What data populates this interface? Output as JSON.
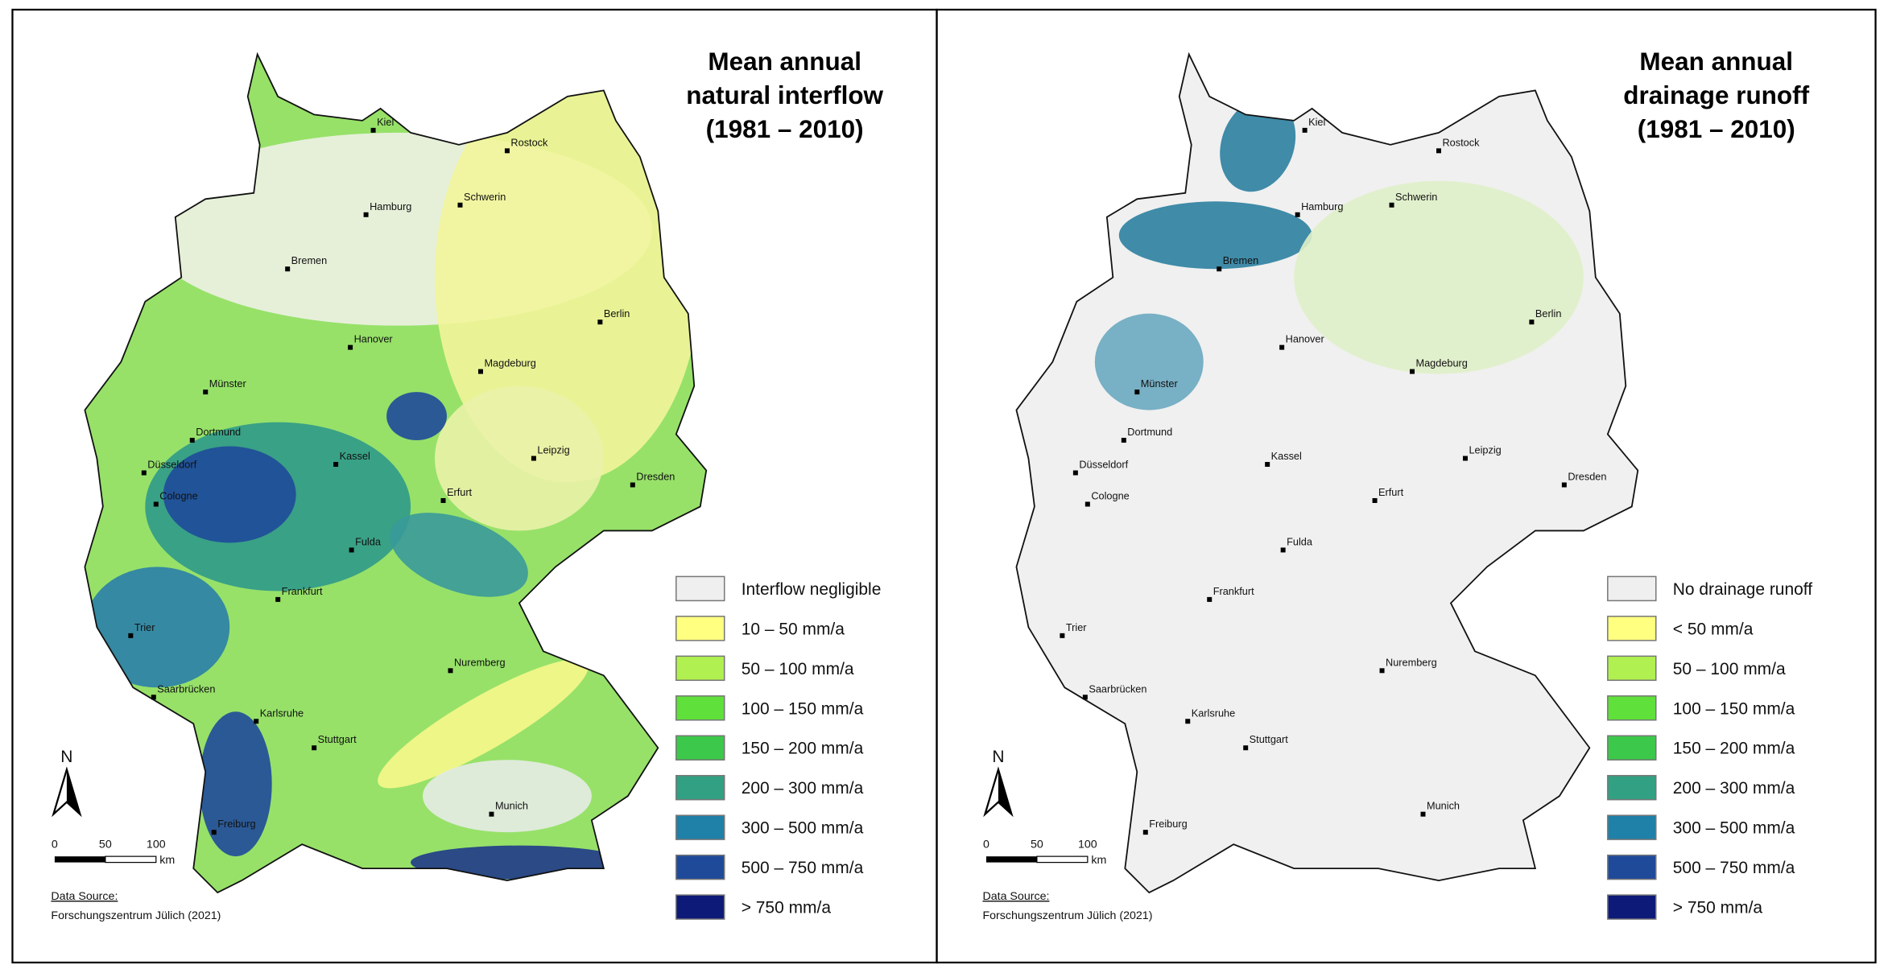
{
  "panels": [
    {
      "title": [
        "Mean annual",
        "natural interflow",
        "(1981 – 2010)"
      ],
      "cities": [
        "Kiel",
        "Rostock",
        "Hamburg",
        "Schwerin",
        "Bremen",
        "Berlin",
        "Hanover",
        "Magdeburg",
        "Münster",
        "Dortmund",
        "Düsseldorf",
        "Kassel",
        "Leipzig",
        "Cologne",
        "Erfurt",
        "Dresden",
        "Fulda",
        "Frankfurt",
        "Trier",
        "Nuremberg",
        "Saarbrücken",
        "Karlsruhe",
        "Stuttgart",
        "Munich",
        "Freiburg"
      ],
      "legend": [
        {
          "label": "Interflow negligible",
          "color": "#efefef"
        },
        {
          "label": "10 – 50 mm/a",
          "color": "#ffff80"
        },
        {
          "label": "50 – 100 mm/a",
          "color": "#b0f050"
        },
        {
          "label": "100 – 150 mm/a",
          "color": "#5fe03a"
        },
        {
          "label": "150 – 200 mm/a",
          "color": "#3cc84a"
        },
        {
          "label": "200 – 300 mm/a",
          "color": "#32a082"
        },
        {
          "label": "300 – 500 mm/a",
          "color": "#1f80a8"
        },
        {
          "label": "500 – 750 mm/a",
          "color": "#1f4a9a"
        },
        {
          "label": "> 750 mm/a",
          "color": "#0d1a78"
        }
      ],
      "north": "N",
      "scale": {
        "ticks": [
          "0",
          "50",
          "100"
        ],
        "unit": "km"
      },
      "source": {
        "label": "Data Source:",
        "text": "Forschungszentrum Jülich (2021)"
      }
    },
    {
      "title": [
        "Mean annual",
        "drainage runoff",
        "(1981 – 2010)"
      ],
      "cities": [
        "Kiel",
        "Rostock",
        "Hamburg",
        "Schwerin",
        "Bremen",
        "Berlin",
        "Hanover",
        "Magdeburg",
        "Münster",
        "Dortmund",
        "Düsseldorf",
        "Kassel",
        "Leipzig",
        "Cologne",
        "Erfurt",
        "Dresden",
        "Fulda",
        "Frankfurt",
        "Trier",
        "Nuremberg",
        "Saarbrücken",
        "Karlsruhe",
        "Stuttgart",
        "Munich",
        "Freiburg"
      ],
      "legend": [
        {
          "label": "No drainage runoff",
          "color": "#efefef"
        },
        {
          "label": "< 50 mm/a",
          "color": "#ffff80"
        },
        {
          "label": "50 – 100 mm/a",
          "color": "#b0f050"
        },
        {
          "label": "100 – 150 mm/a",
          "color": "#5fe03a"
        },
        {
          "label": "150 – 200 mm/a",
          "color": "#3cc84a"
        },
        {
          "label": "200 – 300 mm/a",
          "color": "#32a082"
        },
        {
          "label": "300 – 500 mm/a",
          "color": "#1f80a8"
        },
        {
          "label": "500 – 750 mm/a",
          "color": "#1f4a9a"
        },
        {
          "label": "> 750 mm/a",
          "color": "#0d1a78"
        }
      ],
      "north": "N",
      "scale": {
        "ticks": [
          "0",
          "50",
          "100"
        ],
        "unit": "km"
      },
      "source": {
        "label": "Data Source:",
        "text": "Forschungszentrum Jülich (2021)"
      }
    }
  ]
}
